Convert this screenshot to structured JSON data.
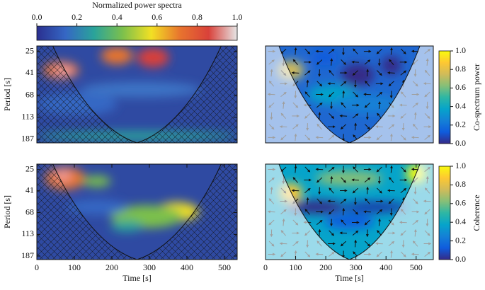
{
  "chart_data": [
    {
      "type": "colorbar",
      "orientation": "horizontal",
      "label": "Normalized power spectra",
      "colormap": [
        "#2a2f8f",
        "#3567c4",
        "#2aa39a",
        "#7cc04c",
        "#f2e024",
        "#e8742e",
        "#d9413a",
        "#e6e6e6"
      ],
      "lim": [
        0,
        1
      ],
      "ticks": [
        {
          "value": 0,
          "label": "0.0"
        },
        {
          "value": 0.2,
          "label": "0.2"
        },
        {
          "value": 0.4,
          "label": "0.4"
        },
        {
          "value": 0.6,
          "label": "0.6"
        },
        {
          "value": 0.8,
          "label": "0.8"
        },
        {
          "value": 1,
          "label": "1.0"
        }
      ]
    },
    {
      "type": "heatmap",
      "ylabel": "Period [s]",
      "xlim": [
        0,
        534
      ],
      "ylim": [
        203,
        22
      ],
      "log_y": true,
      "yticks": [
        25,
        41,
        68,
        113,
        187
      ]
    },
    {
      "type": "heatmap",
      "xlim": [
        0,
        557
      ],
      "ylim": [
        203,
        22
      ],
      "log_y": true
    },
    {
      "type": "colorbar",
      "orientation": "vertical",
      "label": "Co-spectrum power",
      "colormap": [
        "#352a87",
        "#0f5cdd",
        "#1481d6",
        "#06a4ca",
        "#2eb7a4",
        "#87bf77",
        "#d1bb59",
        "#fec832",
        "#f9fb0e"
      ],
      "lim": [
        0,
        1
      ],
      "ticks": [
        {
          "value": 0,
          "label": "0.0"
        },
        {
          "value": 0.2,
          "label": "0.2"
        },
        {
          "value": 0.4,
          "label": "0.4"
        },
        {
          "value": 0.6,
          "label": "0.6"
        },
        {
          "value": 0.8,
          "label": "0.8"
        },
        {
          "value": 1,
          "label": "1.0"
        }
      ]
    },
    {
      "type": "heatmap",
      "xlabel": "Time [s]",
      "ylabel": "Period [s]",
      "xlim": [
        0,
        534
      ],
      "ylim": [
        203,
        22
      ],
      "log_y": true,
      "xticks": [
        0,
        100,
        200,
        300,
        400,
        500
      ],
      "yticks": [
        25,
        41,
        68,
        113,
        187
      ]
    },
    {
      "type": "heatmap",
      "xlabel": "Time [s]",
      "xlim": [
        0,
        557
      ],
      "ylim": [
        203,
        22
      ],
      "log_y": true,
      "xticks": [
        0,
        100,
        200,
        300,
        400,
        500
      ]
    },
    {
      "type": "colorbar",
      "orientation": "vertical",
      "label": "Coherence",
      "colormap": [
        "#352a87",
        "#0f5cdd",
        "#1481d6",
        "#06a4ca",
        "#2eb7a4",
        "#87bf77",
        "#d1bb59",
        "#fec832",
        "#f9fb0e"
      ],
      "lim": [
        0,
        1
      ],
      "ticks": [
        {
          "value": 0,
          "label": "0.0"
        },
        {
          "value": 0.2,
          "label": "0.2"
        },
        {
          "value": 0.4,
          "label": "0.4"
        },
        {
          "value": 0.6,
          "label": "0.6"
        },
        {
          "value": 0.8,
          "label": "0.8"
        },
        {
          "value": 1,
          "label": "1.0"
        }
      ]
    }
  ]
}
